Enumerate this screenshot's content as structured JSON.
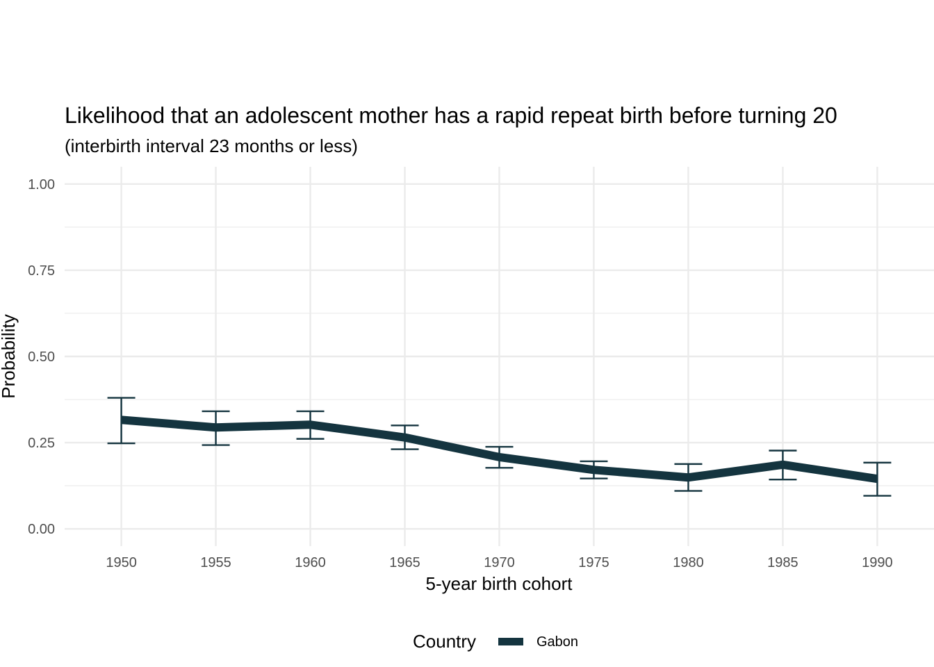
{
  "chart_data": {
    "type": "line",
    "title": "Likelihood that an adolescent mother has a rapid repeat birth before turning 20",
    "subtitle": "(interbirth interval 23 months or less)",
    "xlabel": "5-year birth cohort",
    "ylabel": "Probability",
    "x": [
      1950,
      1955,
      1960,
      1965,
      1970,
      1975,
      1980,
      1985,
      1990
    ],
    "x_ticks": [
      "1950",
      "1955",
      "1960",
      "1965",
      "1970",
      "1975",
      "1980",
      "1985",
      "1990"
    ],
    "y_ticks": [
      "0.00",
      "0.25",
      "0.50",
      "0.75",
      "1.00"
    ],
    "xlim": [
      1947,
      1993
    ],
    "ylim": [
      -0.05,
      1.05
    ],
    "grid": true,
    "legend": {
      "title": "Country",
      "position": "bottom"
    },
    "series": [
      {
        "name": "Gabon",
        "color": "#14343f",
        "values": [
          0.316,
          0.294,
          0.302,
          0.265,
          0.208,
          0.171,
          0.149,
          0.186,
          0.145
        ],
        "lower": [
          0.248,
          0.243,
          0.261,
          0.231,
          0.177,
          0.146,
          0.11,
          0.143,
          0.096
        ],
        "upper": [
          0.38,
          0.341,
          0.341,
          0.3,
          0.238,
          0.196,
          0.188,
          0.227,
          0.192
        ]
      }
    ]
  }
}
